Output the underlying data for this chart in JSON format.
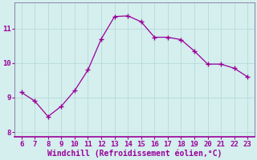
{
  "x": [
    6,
    7,
    8,
    9,
    10,
    11,
    12,
    13,
    14,
    15,
    16,
    17,
    18,
    19,
    20,
    21,
    22,
    23
  ],
  "y": [
    9.15,
    8.9,
    8.45,
    8.75,
    9.2,
    9.8,
    10.7,
    11.35,
    11.37,
    11.2,
    10.75,
    10.75,
    10.68,
    10.35,
    9.97,
    9.97,
    9.85,
    9.6
  ],
  "line_color": "#990099",
  "marker": "+",
  "marker_size": 4,
  "bg_color": "#d5eeee",
  "grid_color": "#bbdddd",
  "spine_color": "#777799",
  "xlabel": "Windchill (Refroidissement éolien,°C)",
  "xlabel_color": "#990099",
  "tick_color": "#990099",
  "xlim": [
    5.5,
    23.5
  ],
  "ylim": [
    7.85,
    11.75
  ],
  "xticks": [
    6,
    7,
    8,
    9,
    10,
    11,
    12,
    13,
    14,
    15,
    16,
    17,
    18,
    19,
    20,
    21,
    22,
    23
  ],
  "yticks": [
    8,
    9,
    10,
    11
  ],
  "xlabel_fontsize": 7,
  "tick_fontsize": 6.5,
  "bottom_spine_color": "#990099"
}
